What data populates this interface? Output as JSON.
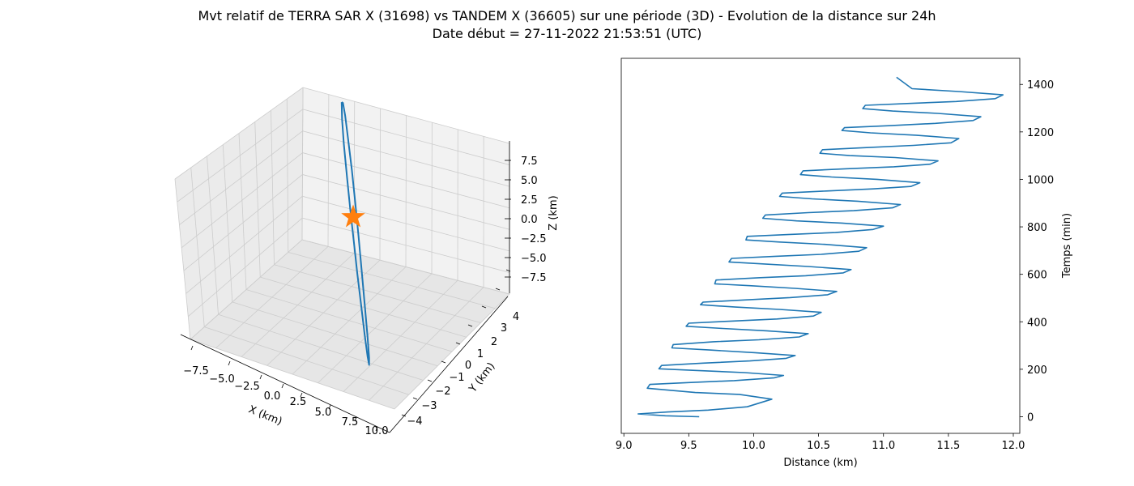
{
  "figure": {
    "title_line1": "Mvt relatif de TERRA SAR X (31698) vs TANDEM X (36605) sur une période (3D) - Evolution de la distance sur 24h",
    "title_line2": "Date début = 27-11-2022 21:53:51 (UTC)"
  },
  "colors": {
    "series": "#1f77b4",
    "marker": "#ff7f0e",
    "pane": "#f2f2f2",
    "grid": "#cccccc"
  },
  "chart_data": [
    {
      "type": "line3d",
      "title": "",
      "xlabel": "X (km)",
      "ylabel": "Y (km)",
      "zlabel": "Z (km)",
      "x_ticks": [
        "−7.5",
        "−5.0",
        "−2.5",
        "0.0",
        "2.5",
        "5.0",
        "7.5",
        "10.0"
      ],
      "y_ticks": [
        "−4",
        "−3",
        "−2",
        "−1",
        "0",
        "1",
        "2",
        "3",
        "4"
      ],
      "z_ticks": [
        "7.5",
        "5.0",
        "2.5",
        "0.0",
        "−2.5",
        "−5.0",
        "−7.5"
      ],
      "xlim": [
        -9,
        10.5
      ],
      "ylim": [
        -4.5,
        4.5
      ],
      "zlim": [
        -9.5,
        9.5
      ],
      "grid": true,
      "marker": {
        "symbol": "star",
        "x": 0,
        "y": 0,
        "z": 0
      },
      "series": [
        {
          "x": [
            -6.5,
            -6.4,
            -5.5,
            -4.0,
            -2.0,
            0.0,
            2.0,
            4.0,
            6.0,
            8.0,
            9.3,
            9.6,
            9.0,
            7.5,
            5.5,
            3.5,
            1.5,
            -0.5,
            -2.5,
            -4.5,
            -5.8,
            -6.5
          ],
          "y": [
            -0.3,
            0.5,
            1.0,
            1.3,
            1.5,
            1.5,
            1.4,
            1.2,
            0.9,
            0.5,
            0.1,
            -0.3,
            -0.6,
            -0.9,
            -1.1,
            -1.3,
            -1.4,
            -1.5,
            -1.4,
            -1.2,
            -0.9,
            -0.3
          ],
          "z": [
            8.0,
            7.5,
            6.5,
            4.8,
            2.8,
            0.7,
            -1.4,
            -3.5,
            -5.5,
            -7.4,
            -8.6,
            -8.9,
            -8.3,
            -6.8,
            -4.8,
            -2.8,
            -0.7,
            1.4,
            3.4,
            5.4,
            7.0,
            8.0
          ]
        }
      ]
    },
    {
      "type": "line",
      "title": "",
      "xlabel": "Distance (km)",
      "ylabel": "Temps (min)",
      "x_ticks": [
        "9.0",
        "9.5",
        "10.0",
        "10.5",
        "11.0",
        "11.5",
        "12.0"
      ],
      "y_ticks": [
        "0",
        "200",
        "400",
        "600",
        "800",
        "1000",
        "1200",
        "1400"
      ],
      "xlim": [
        8.98,
        12.05
      ],
      "ylim": [
        -70,
        1510
      ],
      "grid": false,
      "series": [
        {
          "x": [
            9.58,
            9.32,
            9.11,
            9.34,
            9.65,
            9.95,
            10.14,
            9.89,
            9.55,
            9.18,
            9.2,
            9.5,
            9.85,
            10.16,
            10.23,
            9.93,
            9.55,
            9.27,
            9.29,
            9.61,
            9.97,
            10.25,
            10.32,
            10.01,
            9.66,
            9.37,
            9.38,
            9.69,
            10.04,
            10.35,
            10.42,
            10.1,
            9.76,
            9.48,
            9.5,
            9.83,
            10.18,
            10.46,
            10.52,
            10.2,
            9.86,
            9.59,
            9.61,
            9.93,
            10.28,
            10.57,
            10.64,
            10.32,
            9.97,
            9.7,
            9.71,
            10.05,
            10.4,
            10.69,
            10.75,
            10.42,
            10.07,
            9.81,
            9.83,
            10.17,
            10.52,
            10.81,
            10.87,
            10.55,
            10.2,
            9.94,
            9.95,
            10.28,
            10.63,
            10.92,
            11.0,
            10.68,
            10.33,
            10.07,
            10.09,
            10.42,
            10.77,
            11.07,
            11.13,
            10.8,
            10.45,
            10.2,
            10.22,
            10.56,
            10.92,
            11.21,
            11.28,
            10.95,
            10.6,
            10.36,
            10.38,
            10.72,
            11.08,
            11.36,
            11.42,
            11.09,
            10.74,
            10.51,
            10.53,
            10.87,
            11.23,
            11.52,
            11.58,
            11.25,
            10.9,
            10.68,
            10.7,
            11.04,
            11.4,
            11.69,
            11.75,
            11.42,
            11.07,
            10.84,
            10.86,
            11.2,
            11.56,
            11.86,
            11.92,
            11.58,
            11.22,
            11.1
          ],
          "y": [
            0,
            4,
            12,
            20,
            28,
            42,
            74,
            94,
            102,
            120,
            136,
            144,
            152,
            164,
            174,
            186,
            195,
            202,
            216,
            226,
            235,
            246,
            258,
            270,
            281,
            290,
            304,
            316,
            324,
            336,
            350,
            362,
            372,
            381,
            394,
            403,
            412,
            424,
            440,
            452,
            462,
            472,
            483,
            492,
            502,
            514,
            528,
            541,
            552,
            560,
            576,
            586,
            594,
            606,
            620,
            633,
            644,
            652,
            667,
            676,
            684,
            697,
            712,
            726,
            736,
            745,
            760,
            768,
            776,
            789,
            803,
            816,
            825,
            836,
            850,
            860,
            868,
            880,
            894,
            908,
            918,
            928,
            942,
            951,
            960,
            970,
            986,
            1000,
            1010,
            1020,
            1036,
            1045,
            1053,
            1064,
            1078,
            1092,
            1100,
            1110,
            1125,
            1134,
            1143,
            1154,
            1172,
            1186,
            1196,
            1206,
            1218,
            1226,
            1236,
            1248,
            1264,
            1278,
            1288,
            1298,
            1312,
            1320,
            1328,
            1340,
            1356,
            1370,
            1382,
            1430
          ]
        }
      ]
    }
  ]
}
